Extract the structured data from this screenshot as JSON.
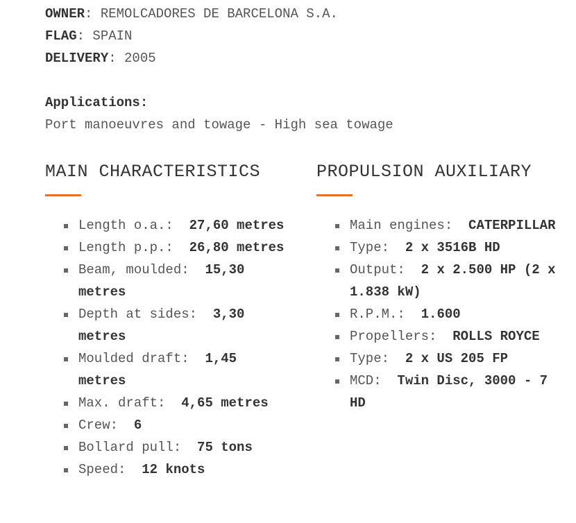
{
  "meta": [
    {
      "label": "OWNER",
      "value": "REMOLCADORES DE BARCELONA S.A."
    },
    {
      "label": "FLAG",
      "value": "SPAIN"
    },
    {
      "label": "DELIVERY",
      "value": "2005"
    }
  ],
  "applications": {
    "label": "Applications:",
    "value": "Port manoeuvres and towage - High sea towage"
  },
  "accent_color": "#e8702a",
  "main": {
    "title": "MAIN CHARACTERISTICS",
    "items": [
      {
        "label": "Length o.a.:",
        "value": "27,60 metres"
      },
      {
        "label": "Length p.p.:",
        "value": "26,80 metres"
      },
      {
        "label": "Beam, moulded:",
        "value": "15,30 metres"
      },
      {
        "label": "Depth at sides:",
        "value": "3,30 metres"
      },
      {
        "label": "Moulded draft:",
        "value": "1,45 metres"
      },
      {
        "label": "Max. draft:",
        "value": "4,65 metres"
      },
      {
        "label": "Crew:",
        "value": "6"
      },
      {
        "label": "Bollard pull:",
        "value": "75 tons"
      },
      {
        "label": "Speed:",
        "value": "12 knots"
      }
    ]
  },
  "propulsion": {
    "title": "PROPULSION AUXILIARY",
    "items": [
      {
        "label": "Main engines:",
        "value": "CATERPILLAR"
      },
      {
        "label": "Type:",
        "value": "2 x 3516B HD"
      },
      {
        "label": "Output:",
        "value": "2 x 2.500 HP (2 x 1.838 kW)"
      },
      {
        "label": "R.P.M.:",
        "value": "1.600"
      },
      {
        "label": "Propellers:",
        "value": "ROLLS ROYCE"
      },
      {
        "label": "Type:",
        "value": "2 x US 205 FP"
      },
      {
        "label": "MCD:",
        "value": "Twin Disc, 3000 - 7 HD"
      }
    ]
  }
}
